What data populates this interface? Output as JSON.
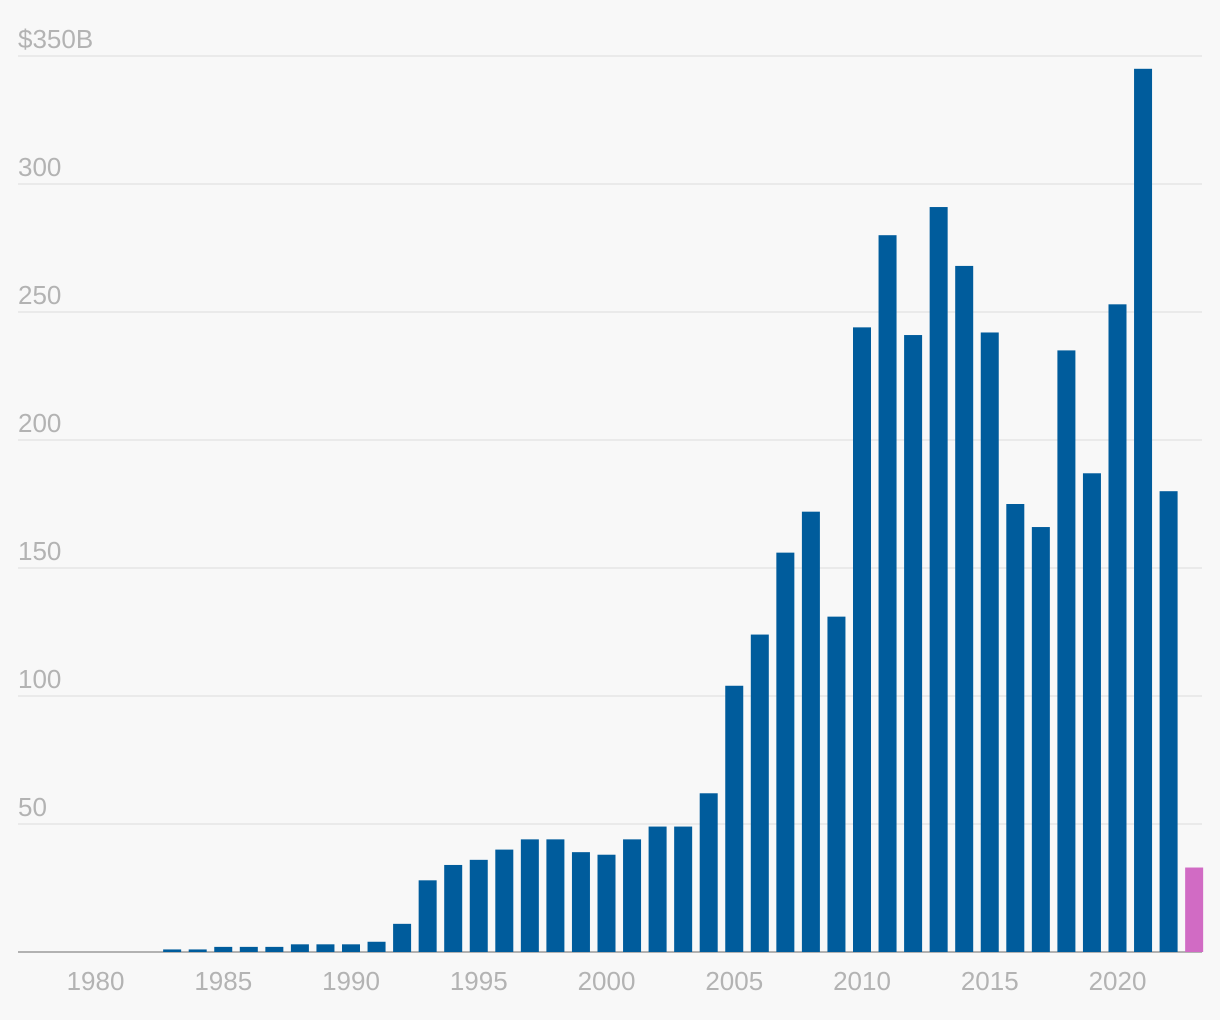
{
  "chart_data": {
    "type": "bar",
    "title": "",
    "xlabel": "",
    "ylabel": "",
    "ylim": [
      0,
      350
    ],
    "y_ticks": [
      {
        "value": 350,
        "label": "$350B"
      },
      {
        "value": 300,
        "label": "300"
      },
      {
        "value": 250,
        "label": "250"
      },
      {
        "value": 200,
        "label": "200"
      },
      {
        "value": 150,
        "label": "150"
      },
      {
        "value": 100,
        "label": "100"
      },
      {
        "value": 50,
        "label": "50"
      },
      {
        "value": 0,
        "label": ""
      }
    ],
    "x_ticks": [
      "1980",
      "1985",
      "1990",
      "1995",
      "2000",
      "2005",
      "2010",
      "2015",
      "2020"
    ],
    "categories": [
      "1980",
      "1981",
      "1982",
      "1983",
      "1984",
      "1985",
      "1986",
      "1987",
      "1988",
      "1989",
      "1990",
      "1991",
      "1992",
      "1993",
      "1994",
      "1995",
      "1996",
      "1997",
      "1998",
      "1999",
      "2000",
      "2001",
      "2002",
      "2003",
      "2004",
      "2005",
      "2006",
      "2007",
      "2008",
      "2009",
      "2010",
      "2011",
      "2012",
      "2013",
      "2014",
      "2015",
      "2016",
      "2017",
      "2018",
      "2019",
      "2020",
      "2021",
      "2022",
      "2023"
    ],
    "values": [
      0,
      0,
      0,
      1,
      1,
      2,
      2,
      2,
      3,
      3,
      3,
      4,
      11,
      28,
      34,
      36,
      40,
      44,
      44,
      39,
      38,
      44,
      49,
      49,
      62,
      104,
      124,
      156,
      172,
      131,
      244,
      280,
      241,
      291,
      268,
      242,
      175,
      166,
      235,
      187,
      253,
      345,
      180,
      33
    ],
    "colors": {
      "bar": "#005c9c",
      "highlight": "#d16bc4",
      "gridline": "#e6e6e6",
      "tick_text": "#b3b3b3",
      "background": "#f8f8f8"
    },
    "highlight_index": 43
  }
}
